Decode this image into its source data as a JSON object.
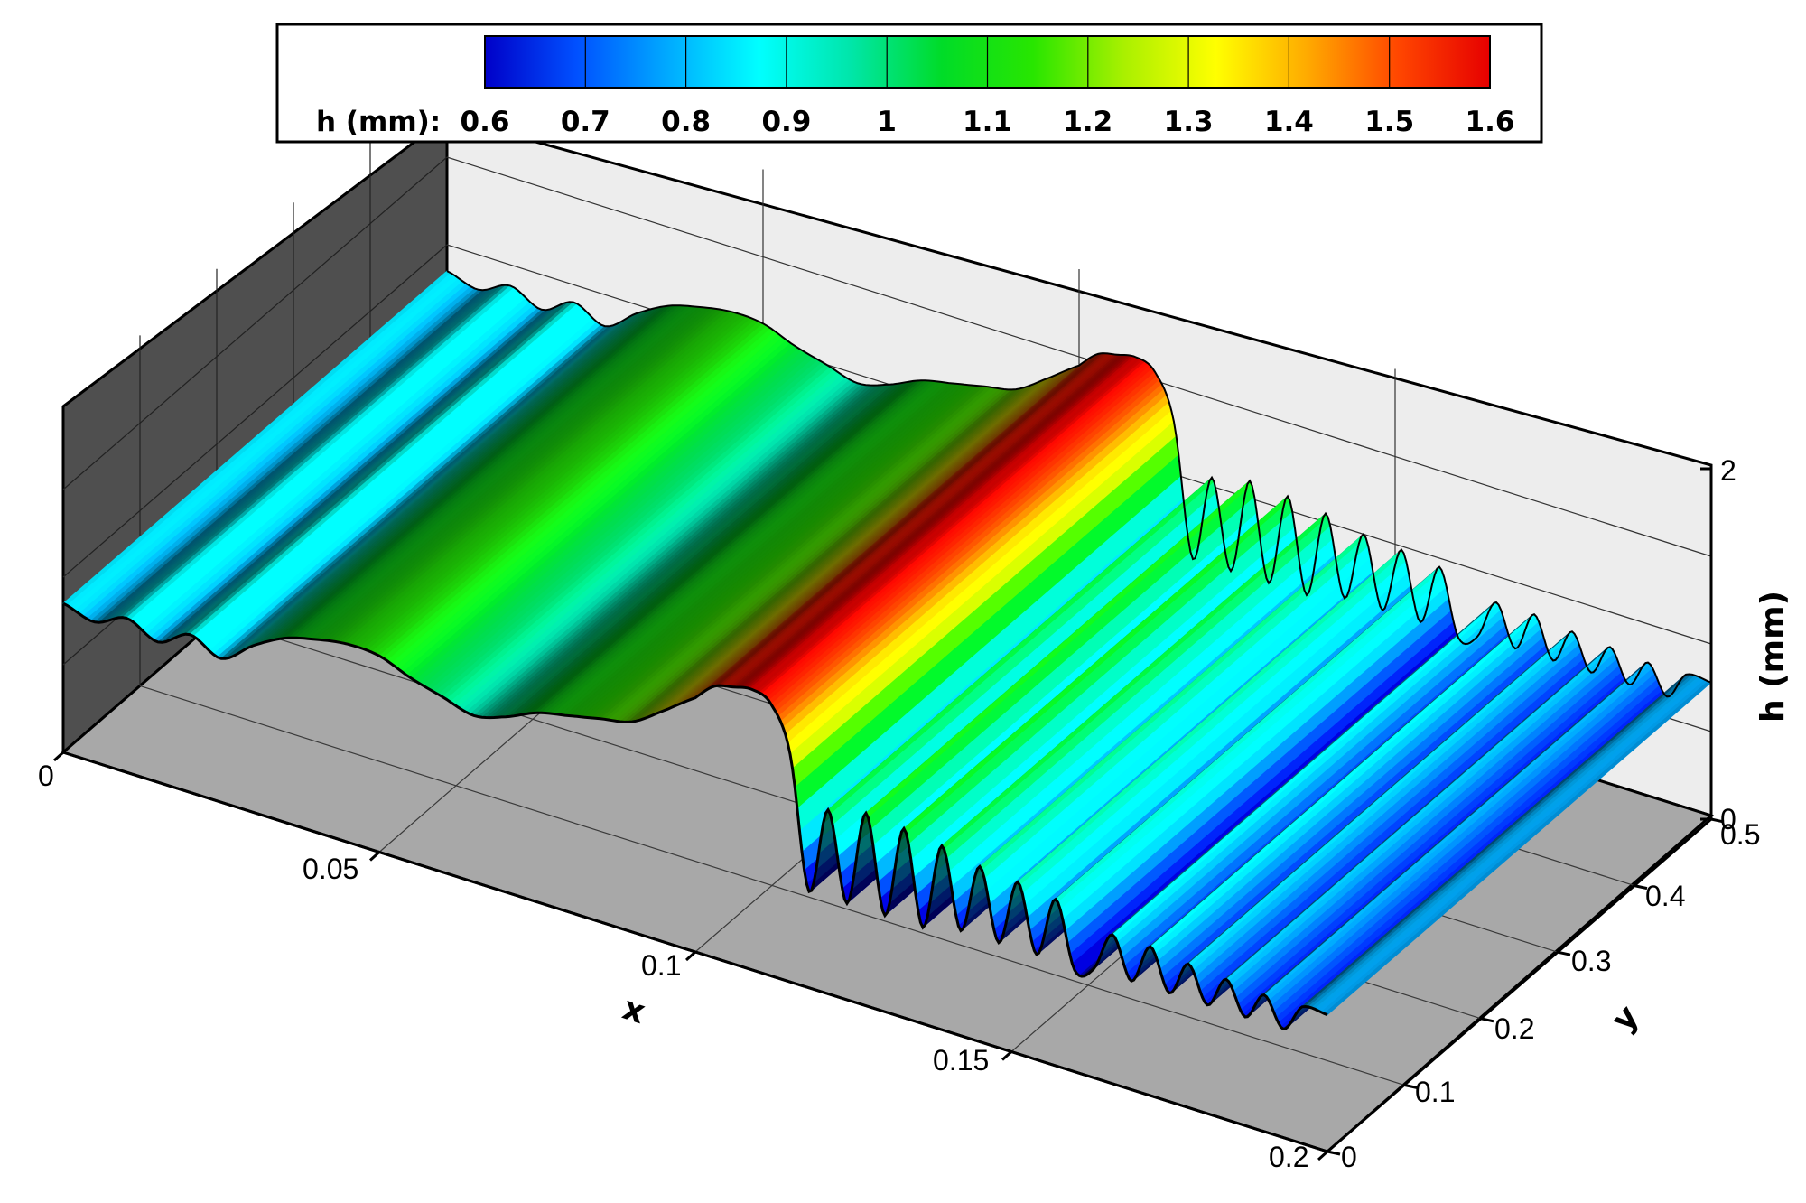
{
  "chart_data": {
    "type": "surface",
    "colorbar": {
      "label": "h (mm):",
      "ticks": [
        "0.6",
        "0.7",
        "0.8",
        "0.9",
        "1",
        "1.1",
        "1.2",
        "1.3",
        "1.4",
        "1.5",
        "1.6"
      ],
      "range": [
        0.6,
        1.6
      ],
      "colors": [
        "#0000c8",
        "#0050ff",
        "#00aaff",
        "#00ffff",
        "#00e6aa",
        "#00dc28",
        "#28e600",
        "#aaf000",
        "#ffff00",
        "#ffaa00",
        "#ff4600",
        "#e60000"
      ]
    },
    "x_axis": {
      "label": "x",
      "ticks": [
        "0",
        "0.05",
        "0.1",
        "0.15",
        "0.2"
      ],
      "range": [
        0,
        0.2
      ]
    },
    "y_axis": {
      "label": "y",
      "ticks": [
        "0",
        "0.1",
        "0.2",
        "0.3",
        "0.4",
        "0.5"
      ],
      "range": [
        0,
        0.5
      ]
    },
    "z_axis": {
      "label": "h (mm)",
      "ticks": [
        "0",
        "2"
      ],
      "range": [
        0,
        2
      ]
    },
    "profile": {
      "x": [
        0.0,
        0.005,
        0.01,
        0.015,
        0.02,
        0.025,
        0.03,
        0.035,
        0.04,
        0.045,
        0.05,
        0.055,
        0.06,
        0.065,
        0.07,
        0.075,
        0.08,
        0.085,
        0.09,
        0.095,
        0.1,
        0.103,
        0.106,
        0.109,
        0.112,
        0.115,
        0.118,
        0.121,
        0.124,
        0.127,
        0.13,
        0.133,
        0.136,
        0.139,
        0.142,
        0.145,
        0.148,
        0.151,
        0.154,
        0.157,
        0.16,
        0.163,
        0.166,
        0.169,
        0.172,
        0.175,
        0.178,
        0.181,
        0.184,
        0.187,
        0.19,
        0.193,
        0.196,
        0.2
      ],
      "h": [
        0.85,
        0.8,
        0.88,
        0.8,
        0.9,
        0.82,
        0.95,
        1.05,
        1.1,
        1.13,
        1.12,
        1.05,
        1.0,
        0.95,
        1.0,
        1.08,
        1.12,
        1.16,
        1.2,
        1.32,
        1.45,
        1.55,
        1.58,
        1.6,
        1.55,
        1.3,
        0.55,
        1.05,
        0.55,
        1.1,
        0.55,
        1.08,
        0.55,
        1.05,
        0.6,
        1.0,
        0.6,
        0.98,
        0.6,
        0.95,
        0.58,
        0.62,
        0.85,
        0.62,
        0.85,
        0.62,
        0.82,
        0.62,
        0.8,
        0.62,
        0.78,
        0.62,
        0.78,
        0.78
      ],
      "note_ignore": ""
    }
  }
}
